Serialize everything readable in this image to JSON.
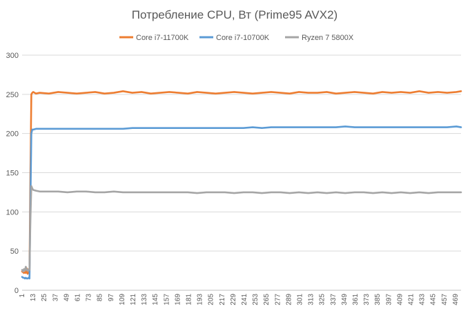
{
  "chart_data": {
    "type": "line",
    "title": "Потребление CPU, Вт (Prime95 AVX2)",
    "xlabel": "",
    "ylabel": "",
    "ylim": [
      0,
      300
    ],
    "yticks": [
      0,
      50,
      100,
      150,
      200,
      250,
      300
    ],
    "x_range": [
      1,
      475
    ],
    "x_tick_labels": [
      "1",
      "13",
      "25",
      "37",
      "49",
      "61",
      "73",
      "85",
      "97",
      "109",
      "121",
      "133",
      "145",
      "157",
      "169",
      "181",
      "193",
      "205",
      "217",
      "229",
      "241",
      "253",
      "265",
      "277",
      "289",
      "301",
      "313",
      "325",
      "337",
      "349",
      "361",
      "373",
      "385",
      "397",
      "409",
      "421",
      "433",
      "445",
      "457",
      "469"
    ],
    "grid": "horizontal",
    "legend_position": "top",
    "series": [
      {
        "name": "Core i7-11700K",
        "color": "#ed7d31",
        "x": [
          1,
          2,
          3,
          4,
          5,
          6,
          7,
          8,
          9,
          10,
          11,
          12,
          13,
          16,
          20,
          30,
          40,
          50,
          60,
          70,
          80,
          90,
          100,
          110,
          120,
          130,
          140,
          150,
          160,
          170,
          180,
          190,
          200,
          210,
          220,
          230,
          240,
          250,
          260,
          270,
          280,
          290,
          300,
          310,
          320,
          330,
          340,
          350,
          360,
          370,
          380,
          390,
          400,
          410,
          420,
          430,
          440,
          450,
          460,
          470,
          475
        ],
        "y": [
          24,
          23,
          22,
          23,
          22,
          28,
          21,
          23,
          22,
          150,
          250,
          252,
          253,
          251,
          252,
          251,
          253,
          252,
          251,
          252,
          253,
          251,
          252,
          254,
          252,
          253,
          251,
          252,
          253,
          252,
          251,
          253,
          252,
          251,
          252,
          253,
          252,
          251,
          252,
          253,
          252,
          251,
          253,
          252,
          252,
          253,
          251,
          252,
          253,
          252,
          251,
          253,
          252,
          253,
          252,
          254,
          252,
          253,
          252,
          253,
          254
        ]
      },
      {
        "name": "Core i7-10700K",
        "color": "#5b9bd5",
        "x": [
          1,
          2,
          3,
          4,
          5,
          6,
          7,
          8,
          9,
          10,
          11,
          12,
          13,
          16,
          20,
          30,
          40,
          50,
          60,
          70,
          80,
          90,
          100,
          110,
          120,
          130,
          140,
          150,
          160,
          170,
          180,
          190,
          200,
          210,
          220,
          230,
          240,
          250,
          260,
          270,
          280,
          290,
          300,
          310,
          320,
          330,
          340,
          350,
          360,
          370,
          380,
          390,
          400,
          410,
          420,
          430,
          440,
          450,
          460,
          470,
          475
        ],
        "y": [
          17,
          16,
          16,
          15,
          16,
          15,
          15,
          16,
          15,
          110,
          200,
          205,
          205,
          206,
          206,
          206,
          206,
          206,
          206,
          206,
          206,
          206,
          206,
          206,
          207,
          207,
          207,
          207,
          207,
          207,
          207,
          207,
          207,
          207,
          207,
          207,
          207,
          208,
          207,
          208,
          208,
          208,
          208,
          208,
          208,
          208,
          208,
          209,
          208,
          208,
          208,
          208,
          208,
          208,
          208,
          208,
          208,
          208,
          208,
          209,
          208
        ]
      },
      {
        "name": "Ryzen 7 5800X",
        "color": "#a5a5a5",
        "x": [
          1,
          2,
          3,
          4,
          5,
          6,
          7,
          8,
          9,
          10,
          11,
          12,
          13,
          16,
          20,
          30,
          40,
          50,
          60,
          70,
          80,
          90,
          100,
          110,
          120,
          130,
          140,
          150,
          160,
          170,
          180,
          190,
          200,
          210,
          220,
          230,
          240,
          250,
          260,
          270,
          280,
          290,
          300,
          310,
          320,
          330,
          340,
          350,
          360,
          370,
          380,
          390,
          400,
          410,
          420,
          430,
          440,
          450,
          460,
          470,
          475
        ],
        "y": [
          26,
          24,
          27,
          25,
          30,
          26,
          25,
          27,
          26,
          90,
          133,
          130,
          128,
          127,
          126,
          126,
          126,
          125,
          126,
          126,
          125,
          125,
          126,
          125,
          125,
          125,
          125,
          125,
          125,
          125,
          125,
          124,
          125,
          125,
          125,
          124,
          125,
          125,
          124,
          125,
          125,
          124,
          125,
          124,
          125,
          124,
          125,
          124,
          125,
          125,
          124,
          125,
          124,
          125,
          124,
          125,
          124,
          125,
          125,
          125,
          125
        ]
      }
    ]
  }
}
